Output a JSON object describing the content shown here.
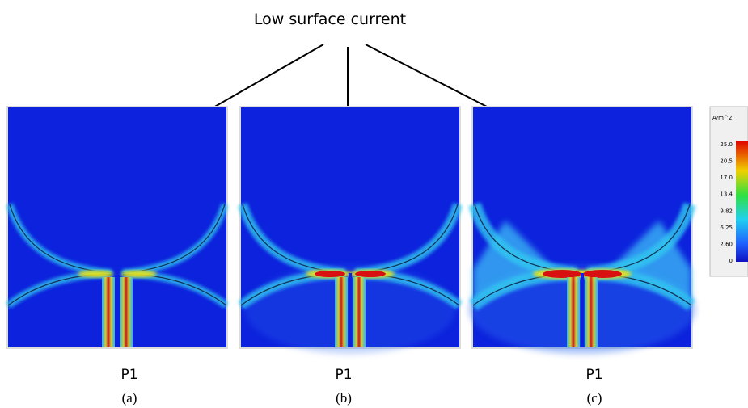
{
  "annotation": "Low surface current",
  "panels": [
    {
      "port": "P1",
      "caption": "(a)"
    },
    {
      "port": "P1",
      "caption": "(b)"
    },
    {
      "port": "P1",
      "caption": "(c)"
    }
  ],
  "colorbar": {
    "unit": "A/m^2",
    "ticks": [
      "25.0",
      "20.5",
      "17.0",
      "13.4",
      "9.82",
      "6.25",
      "2.60",
      "0"
    ]
  }
}
